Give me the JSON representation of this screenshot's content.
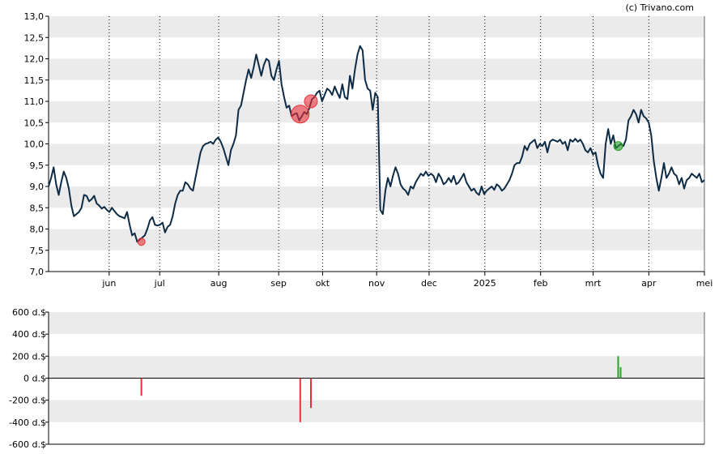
{
  "copyright": "(c) Trivano.com",
  "chart_data": [
    {
      "type": "line",
      "title": "",
      "ylim": [
        7.0,
        13.0
      ],
      "y_ticks": [
        "13,0",
        "12,5",
        "12,0",
        "11,5",
        "11,0",
        "10,5",
        "10,0",
        "9,5",
        "9,0",
        "8,5",
        "8,0",
        "7,5",
        "7,0"
      ],
      "x_ticks": [
        "jun",
        "jul",
        "aug",
        "sep",
        "okt",
        "nov",
        "dec",
        "2025",
        "feb",
        "mrt",
        "apr",
        "mei"
      ],
      "grid": "alternating horizontal bands, dotted vertical month lines",
      "colors": {
        "line": "#0d2b45",
        "buy": "#2ca02c",
        "sell": "#e8313a",
        "band": "#ebebeb"
      },
      "series": [
        {
          "values": [
            9.0,
            9.2,
            9.45,
            9.05,
            8.8,
            9.1,
            9.35,
            9.2,
            8.95,
            8.55,
            8.3,
            8.35,
            8.4,
            8.5,
            8.8,
            8.78,
            8.65,
            8.7,
            8.78,
            8.6,
            8.55,
            8.48,
            8.52,
            8.45,
            8.4,
            8.5,
            8.42,
            8.35,
            8.3,
            8.28,
            8.25,
            8.4,
            8.1,
            7.85,
            7.9,
            7.7,
            7.75,
            7.8,
            7.85,
            8.0,
            8.2,
            8.28,
            8.1,
            8.08,
            8.1,
            8.15,
            7.92,
            8.05,
            8.1,
            8.3,
            8.6,
            8.8,
            8.9,
            8.9,
            9.1,
            9.05,
            8.95,
            8.9,
            9.2,
            9.5,
            9.8,
            9.95,
            10.0,
            10.02,
            10.05,
            10.0,
            10.1,
            10.15,
            10.05,
            9.9,
            9.7,
            9.5,
            9.85,
            10.0,
            10.2,
            10.8,
            10.9,
            11.2,
            11.5,
            11.75,
            11.55,
            11.8,
            12.1,
            11.85,
            11.6,
            11.85,
            12.0,
            11.95,
            11.6,
            11.5,
            11.75,
            11.95,
            11.4,
            11.1,
            10.85,
            10.9,
            10.65,
            10.7,
            10.72,
            10.55,
            10.65,
            10.75,
            10.7,
            10.85,
            11.05,
            11.1,
            11.2,
            11.25,
            11.0,
            11.15,
            11.3,
            11.25,
            11.15,
            11.35,
            11.2,
            11.08,
            11.4,
            11.1,
            11.05,
            11.6,
            11.3,
            11.75,
            12.1,
            12.3,
            12.2,
            11.5,
            11.3,
            11.25,
            10.8,
            11.2,
            11.1,
            8.45,
            8.35,
            8.9,
            9.2,
            9.0,
            9.25,
            9.45,
            9.3,
            9.05,
            8.95,
            8.9,
            8.8,
            9.0,
            8.95,
            9.1,
            9.2,
            9.3,
            9.25,
            9.35,
            9.25,
            9.3,
            9.25,
            9.1,
            9.3,
            9.2,
            9.05,
            9.1,
            9.2,
            9.1,
            9.25,
            9.05,
            9.1,
            9.2,
            9.3,
            9.1,
            9.0,
            8.9,
            8.95,
            8.85,
            8.8,
            9.0,
            8.82,
            8.9,
            8.95,
            9.0,
            8.92,
            9.05,
            9.0,
            8.9,
            8.95,
            9.05,
            9.15,
            9.3,
            9.5,
            9.55,
            9.55,
            9.7,
            9.95,
            9.85,
            10.0,
            10.05,
            10.1,
            9.9,
            10.0,
            9.95,
            10.05,
            9.8,
            10.05,
            10.1,
            10.08,
            10.05,
            10.1,
            10.0,
            10.05,
            9.85,
            10.1,
            10.05,
            10.12,
            10.05,
            10.1,
            10.0,
            9.85,
            9.8,
            9.9,
            9.75,
            9.8,
            9.5,
            9.3,
            9.2,
            10.0,
            10.35,
            10.0,
            10.2,
            9.9,
            9.95,
            10.0,
            9.95,
            10.1,
            10.55,
            10.65,
            10.8,
            10.7,
            10.5,
            10.8,
            10.65,
            10.6,
            10.5,
            10.2,
            9.6,
            9.2,
            8.9,
            9.2,
            9.55,
            9.2,
            9.3,
            9.45,
            9.3,
            9.25,
            9.05,
            9.2,
            8.95,
            9.15,
            9.2,
            9.3,
            9.25,
            9.2,
            9.3,
            9.1,
            9.15
          ]
        }
      ],
      "trade_markers": [
        {
          "type": "sell",
          "date": "jun",
          "price": 7.7
        },
        {
          "type": "sell",
          "date": "sep",
          "price": 10.7
        },
        {
          "type": "sell",
          "date": "sep",
          "price": 11.0
        },
        {
          "type": "buy",
          "date": "mrt",
          "price": 9.95
        }
      ]
    },
    {
      "type": "bar",
      "title": "",
      "ylim": [
        -600,
        600
      ],
      "y_ticks": [
        "600 d.$",
        "400 d.$",
        "200 d.$",
        "0 d.$",
        "-200 d.$",
        "-400 d.$",
        "-600 d.$"
      ],
      "unit": "d.$",
      "bars": [
        {
          "type": "sell",
          "value": -160
        },
        {
          "type": "sell",
          "value": -400
        },
        {
          "type": "sell",
          "value": -270
        },
        {
          "type": "buy",
          "value": 200
        },
        {
          "type": "buy",
          "value": 100
        }
      ]
    }
  ]
}
